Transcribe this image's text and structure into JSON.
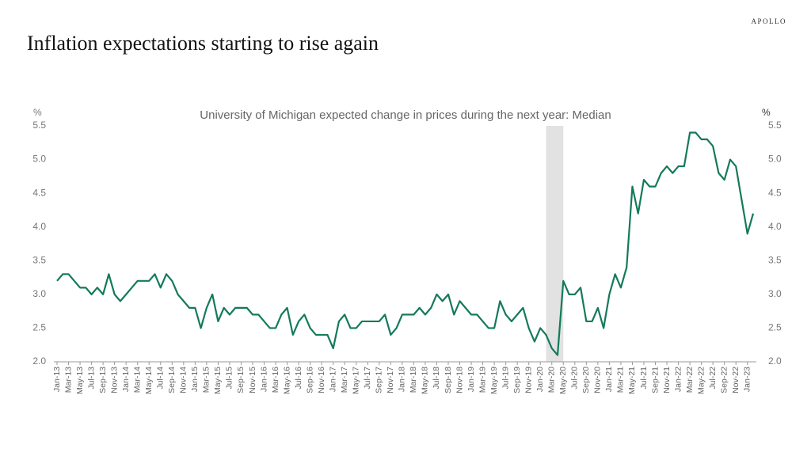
{
  "brand": "APOLLO",
  "chart_data": {
    "type": "line",
    "title": "Inflation expectations starting to rise again",
    "subtitle": "University of Michigan expected change in prices during the next year: Median",
    "ylabel": "%",
    "y2label": "%",
    "categories": [
      "Jan-13",
      null,
      "Mar-13",
      null,
      "May-13",
      null,
      "Jul-13",
      null,
      "Sep-13",
      null,
      "Nov-13",
      null,
      "Jan-14",
      null,
      "Mar-14",
      null,
      "May-14",
      null,
      "Jul-14",
      null,
      "Sep-14",
      null,
      "Nov-14",
      null,
      "Jan-15",
      null,
      "Mar-15",
      null,
      "May-15",
      null,
      "Jul-15",
      null,
      "Sep-15",
      null,
      "Nov-15",
      null,
      "Jan-16",
      null,
      "Mar-16",
      null,
      "May-16",
      null,
      "Jul-16",
      null,
      "Sep-16",
      null,
      "Nov-16",
      null,
      "Jan-17",
      null,
      "Mar-17",
      null,
      "May-17",
      null,
      "Jul-17",
      null,
      "Sep-17",
      null,
      "Nov-17",
      null,
      "Jan-18",
      null,
      "Mar-18",
      null,
      "May-18",
      null,
      "Jul-18",
      null,
      "Sep-18",
      null,
      "Nov-18",
      null,
      "Jan-19",
      null,
      "Mar-19",
      null,
      "May-19",
      null,
      "Jul-19",
      null,
      "Sep-19",
      null,
      "Nov-19",
      null,
      "Jan-20",
      null,
      "Mar-20",
      null,
      "May-20",
      null,
      "Jul-20",
      null,
      "Sep-20",
      null,
      "Nov-20",
      null,
      "Jan-21",
      null,
      "Mar-21",
      null,
      "May-21",
      null,
      "Jul-21",
      null,
      "Sep-21",
      null,
      "Nov-21",
      null,
      "Jan-22",
      null,
      "Mar-22",
      null,
      "May-22",
      null,
      "Jul-22",
      null,
      "Sep-22",
      null,
      "Nov-22",
      null,
      "Jan-23",
      null
    ],
    "series": [
      {
        "name": "Median",
        "color": "#137a5c",
        "values": [
          3.2,
          3.3,
          3.3,
          3.2,
          3.1,
          3.1,
          3.0,
          3.1,
          3.0,
          3.3,
          3.0,
          2.9,
          3.0,
          3.1,
          3.2,
          3.2,
          3.2,
          3.3,
          3.1,
          3.3,
          3.2,
          3.0,
          2.9,
          2.8,
          2.8,
          2.5,
          2.8,
          3.0,
          2.6,
          2.8,
          2.7,
          2.8,
          2.8,
          2.8,
          2.7,
          2.7,
          2.6,
          2.5,
          2.5,
          2.7,
          2.8,
          2.4,
          2.6,
          2.7,
          2.5,
          2.4,
          2.4,
          2.4,
          2.2,
          2.6,
          2.7,
          2.5,
          2.5,
          2.6,
          2.6,
          2.6,
          2.6,
          2.7,
          2.4,
          2.5,
          2.7,
          2.7,
          2.7,
          2.8,
          2.7,
          2.8,
          3.0,
          2.9,
          3.0,
          2.7,
          2.9,
          2.8,
          2.7,
          2.7,
          2.6,
          2.5,
          2.5,
          2.9,
          2.7,
          2.6,
          2.7,
          2.8,
          2.5,
          2.3,
          2.5,
          2.4,
          2.2,
          2.1,
          3.2,
          3.0,
          3.0,
          3.1,
          2.6,
          2.6,
          2.8,
          2.5,
          3.0,
          3.3,
          3.1,
          3.4,
          4.6,
          4.2,
          4.7,
          4.6,
          4.6,
          4.8,
          4.9,
          4.8,
          4.9,
          4.9,
          5.4,
          5.4,
          5.3,
          5.3,
          5.2,
          4.8,
          4.7,
          5.0,
          4.9,
          4.4,
          3.9,
          4.2
        ]
      }
    ],
    "shade": [
      85,
      88
    ],
    "shade_color": "#e2e2e2",
    "ylim": [
      2,
      5.5
    ],
    "yticks": [
      {
        "value": 2,
        "label": "2.0"
      },
      2.5,
      {
        "value": 3,
        "label": "3.0"
      },
      3.5,
      {
        "value": 4,
        "label": "4.0"
      },
      4.5,
      {
        "value": 5,
        "label": "5.0"
      },
      5.5
    ],
    "y2lim": [
      2,
      5.5
    ],
    "y2ticks": [
      {
        "value": 2,
        "label": "2.0"
      },
      2.5,
      {
        "value": 3,
        "label": "3.0"
      },
      3.5,
      {
        "value": 4,
        "label": "4.0"
      },
      4.5,
      {
        "value": 5,
        "label": "5.0"
      },
      5.5
    ]
  }
}
